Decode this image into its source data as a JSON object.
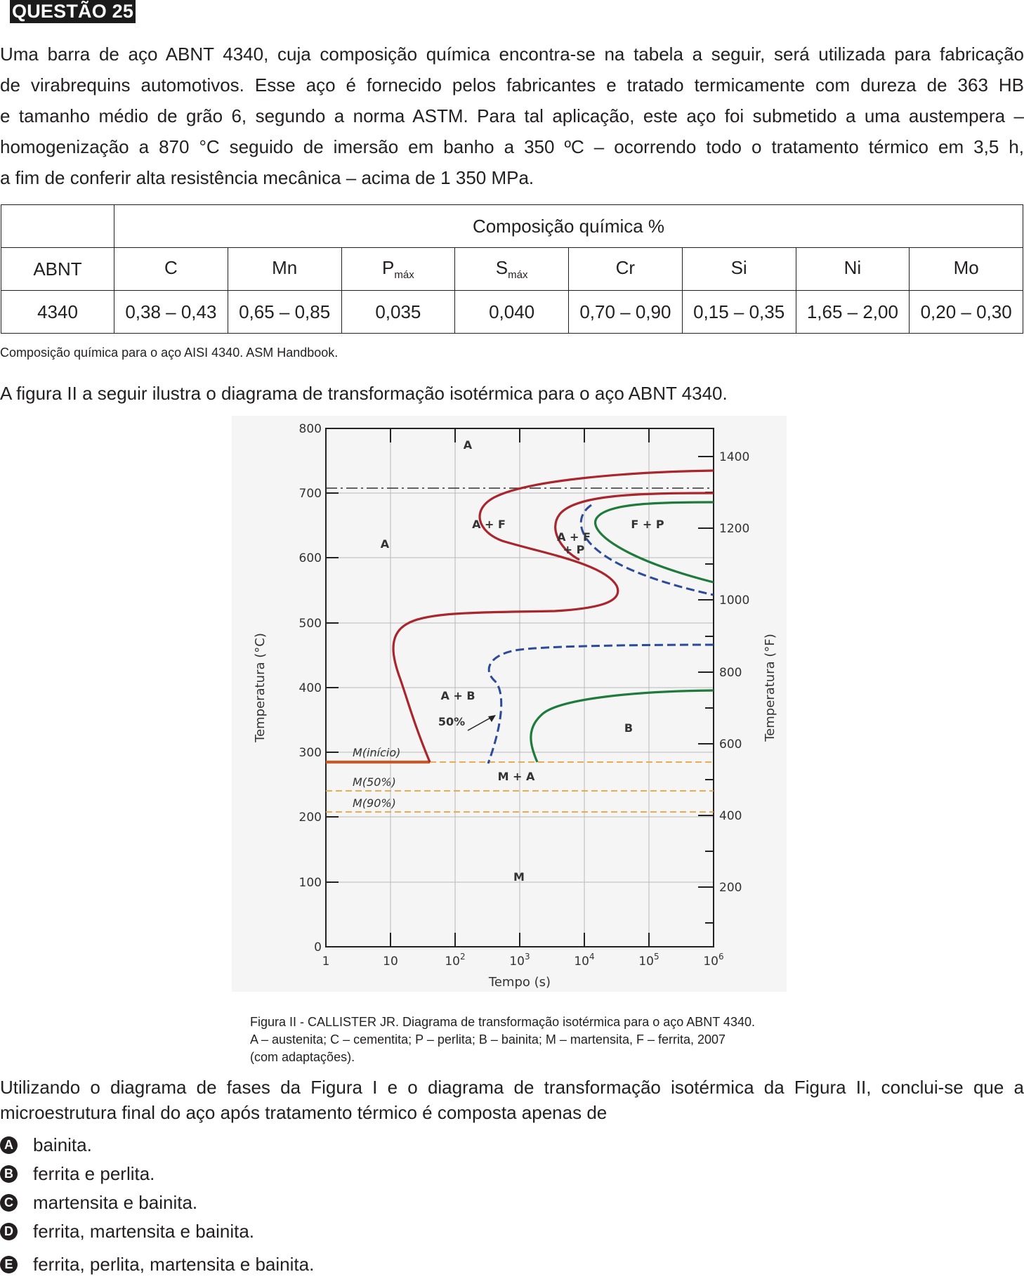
{
  "question": {
    "label": "QUESTÃO 25",
    "intro_lines": [
      "Uma barra de aço ABNT 4340, cuja composição química encontra-se na tabela a seguir, será utilizada para fabricação",
      "de virabrequins automotivos. Esse aço é fornecido pelos fabricantes e tratado termicamente com dureza de 363 HB",
      "e tamanho médio de grão 6, segundo a norma ASTM. Para tal aplicação, este aço foi submetido a uma austempera –",
      "homogenização a 870 °C seguido de imersão em banho a 350 ºC – ocorrendo todo o tratamento térmico em 3,5 h,",
      "a fim de conferir alta resistência mecânica – acima de 1 350 MPa."
    ]
  },
  "table": {
    "group_header": "Composição química %",
    "row_header": "ABNT",
    "columns": [
      {
        "label": "C",
        "sub": ""
      },
      {
        "label": "Mn",
        "sub": ""
      },
      {
        "label": "P",
        "sub": "máx"
      },
      {
        "label": "S",
        "sub": "máx"
      },
      {
        "label": "Cr",
        "sub": ""
      },
      {
        "label": "Si",
        "sub": ""
      },
      {
        "label": "Ni",
        "sub": ""
      },
      {
        "label": "Mo",
        "sub": ""
      }
    ],
    "row": {
      "grade": "4340",
      "values": [
        "0,38 – 0,43",
        "0,65 – 0,85",
        "0,035",
        "0,040",
        "0,70 – 0,90",
        "0,15 – 0,35",
        "1,65 – 2,00",
        "0,20 – 0,30"
      ]
    },
    "source": "Composição química para o aço AISI 4340. ASM Handbook."
  },
  "figure_intro": "A figura II a seguir ilustra o diagrama de transformação isotérmica para o aço ABNT 4340.",
  "diagram": {
    "x_axis_label": "Tempo (s)",
    "y_axis_left_label": "Temperatura (°C)",
    "y_axis_right_label": "Temperatura (°F)",
    "x_tick_bases": [
      "1",
      "10",
      "10",
      "10",
      "10",
      "10",
      "10"
    ],
    "x_tick_exps": [
      "",
      "",
      "2",
      "3",
      "4",
      "5",
      "6"
    ],
    "y_left_ticks": [
      "0",
      "100",
      "200",
      "300",
      "400",
      "500",
      "600",
      "700",
      "800"
    ],
    "y_right_ticks": [
      "200",
      "400",
      "600",
      "800",
      "1000",
      "1200",
      "1400"
    ],
    "region_labels": {
      "a_top": "A",
      "a_left": "A",
      "a_plus_f": "A + F",
      "a_f_p_line1": "A + F",
      "a_f_p_line2": "+ P",
      "f_plus_p": "F + P",
      "a_plus_b": "A + B",
      "fifty": "50%",
      "b": "B",
      "m_plus_a": "M + A",
      "m": "M",
      "m_start": "M(início)",
      "m_50": "M(50%)",
      "m_90": "M(90%)"
    },
    "colors": {
      "austenite_curve": "#a8262c",
      "fifty_curve": "#2b4a9a",
      "finish_curve": "#1f7a3c",
      "martensite_lines": "#e8a33d",
      "m_start_line": "#d9531e"
    }
  },
  "caption_lines": [
    "Figura II - CALLISTER JR. Diagrama de transformação isotérmica para o aço ABNT 4340.",
    "A – austenita; C – cementita; P – perlita; B – bainita; M – martensita, F – ferrita, 2007",
    "(com adaptações)."
  ],
  "prompt_lines": [
    "Utilizando o diagrama de fases da Figura I e o diagrama de transformação isotérmica da Figura II, conclui-se que a",
    "microestrutura final do aço após tratamento térmico é composta apenas de"
  ],
  "options": [
    {
      "letter": "A",
      "text": "bainita."
    },
    {
      "letter": "B",
      "text": "ferrita e perlita."
    },
    {
      "letter": "C",
      "text": "martensita e bainita."
    },
    {
      "letter": "D",
      "text": "ferrita, martensita e bainita."
    },
    {
      "letter": "E",
      "text": "ferrita, perlita, martensita e bainita."
    }
  ]
}
